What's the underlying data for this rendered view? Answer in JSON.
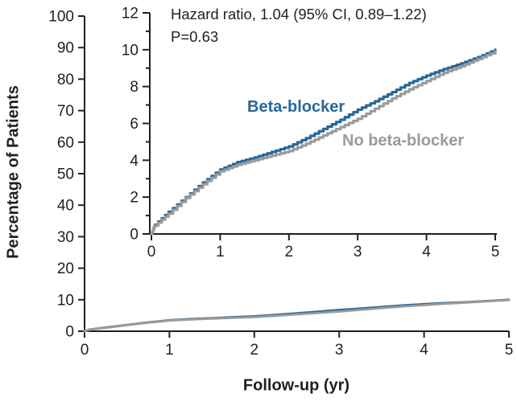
{
  "colors": {
    "axis": "#231F20",
    "background": "#FFFFFF",
    "beta_blocker_blue": "#26689B",
    "no_beta_blocker_gray": "#9B9B9B"
  },
  "chart_data": {
    "type": "line",
    "title": "",
    "xlabel": "Follow-up (yr)",
    "ylabel": "Percentage of Patients",
    "annotation": [
      "Hazard ratio, 1.04 (95% CI, 0.89–1.22)",
      "P=0.63"
    ],
    "main_axis": {
      "xlim": [
        0,
        5
      ],
      "ylim": [
        0,
        100
      ],
      "xticks": [
        0,
        1,
        2,
        3,
        4,
        5
      ],
      "yticks": [
        0,
        10,
        20,
        30,
        40,
        50,
        60,
        70,
        80,
        90,
        100
      ],
      "grid": false
    },
    "inset_axis": {
      "xlim": [
        0,
        5
      ],
      "ylim": [
        0,
        12
      ],
      "xticks": [
        0,
        1,
        2,
        3,
        4,
        5
      ],
      "yticks_major": [
        0,
        2,
        4,
        6,
        8,
        10,
        12
      ],
      "yticks_minor": [
        1,
        3,
        5,
        7,
        9,
        11
      ],
      "grid": false
    },
    "series": [
      {
        "name": "Beta-blocker",
        "color": "#26689B",
        "points": [
          [
            0,
            0
          ],
          [
            0.05,
            0.5
          ],
          [
            0.25,
            1.2
          ],
          [
            0.5,
            2.0
          ],
          [
            0.75,
            2.8
          ],
          [
            1.0,
            3.5
          ],
          [
            1.25,
            3.9
          ],
          [
            1.5,
            4.15
          ],
          [
            1.75,
            4.45
          ],
          [
            2.0,
            4.75
          ],
          [
            2.25,
            5.2
          ],
          [
            2.5,
            5.7
          ],
          [
            2.75,
            6.2
          ],
          [
            3.0,
            6.75
          ],
          [
            3.25,
            7.2
          ],
          [
            3.5,
            7.7
          ],
          [
            3.75,
            8.2
          ],
          [
            4.0,
            8.6
          ],
          [
            4.25,
            8.95
          ],
          [
            4.5,
            9.25
          ],
          [
            4.75,
            9.6
          ],
          [
            5.0,
            10.0
          ]
        ]
      },
      {
        "name": "No beta-blocker",
        "color": "#9B9B9B",
        "points": [
          [
            0,
            0
          ],
          [
            0.05,
            0.45
          ],
          [
            0.25,
            1.1
          ],
          [
            0.5,
            1.95
          ],
          [
            0.75,
            2.7
          ],
          [
            1.0,
            3.4
          ],
          [
            1.25,
            3.75
          ],
          [
            1.5,
            4.0
          ],
          [
            1.75,
            4.25
          ],
          [
            2.0,
            4.5
          ],
          [
            2.25,
            4.9
          ],
          [
            2.5,
            5.35
          ],
          [
            2.75,
            5.8
          ],
          [
            3.0,
            6.25
          ],
          [
            3.25,
            6.8
          ],
          [
            3.5,
            7.35
          ],
          [
            3.75,
            7.85
          ],
          [
            4.0,
            8.3
          ],
          [
            4.25,
            8.75
          ],
          [
            4.5,
            9.1
          ],
          [
            4.75,
            9.5
          ],
          [
            5.0,
            9.9
          ]
        ]
      }
    ]
  }
}
